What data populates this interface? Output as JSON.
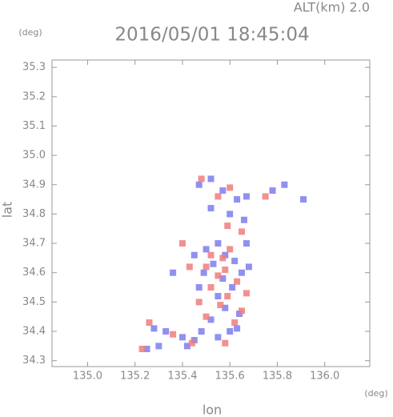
{
  "chart_data": {
    "type": "scatter",
    "title": "2016/05/01 18:45:04",
    "subtitle": "ALT(km) 2.0",
    "y_unit": "(deg)",
    "x_unit": "(deg)",
    "x_label": "lon",
    "y_label": "lat",
    "xlim": [
      134.85,
      136.19
    ],
    "ylim": [
      34.28,
      35.325
    ],
    "xticks": [
      {
        "value": 135.0,
        "label": "135.0"
      },
      135.2,
      135.4,
      135.6,
      135.8,
      {
        "value": 136.0,
        "label": "136.0"
      }
    ],
    "yticks": [
      34.3,
      34.4,
      34.5,
      34.6,
      34.7,
      34.8,
      34.9,
      {
        "value": 35.0,
        "label": "35.0"
      },
      35.1,
      35.2,
      35.3
    ],
    "series": [
      {
        "color": "#7c7cf0",
        "x": [
          135.52,
          135.47,
          135.57,
          135.63,
          135.67,
          135.78,
          135.83,
          135.91,
          135.6,
          135.66,
          135.52,
          135.55,
          135.5,
          135.58,
          135.62,
          135.53,
          135.65,
          135.57,
          135.49,
          135.61,
          135.55,
          135.58,
          135.64,
          135.52,
          135.6,
          135.55,
          135.63,
          135.48,
          135.45,
          135.4,
          135.33,
          135.28,
          135.3,
          135.25,
          135.42,
          135.68,
          135.67,
          135.45,
          135.36,
          135.47
        ],
        "values": [
          34.92,
          34.9,
          34.88,
          34.85,
          34.86,
          34.88,
          34.9,
          34.85,
          34.8,
          34.78,
          34.82,
          34.7,
          34.68,
          34.66,
          34.64,
          34.63,
          34.6,
          34.58,
          34.6,
          34.55,
          34.52,
          34.48,
          34.46,
          34.44,
          34.4,
          34.38,
          34.41,
          34.4,
          34.37,
          34.38,
          34.4,
          34.41,
          34.35,
          34.34,
          34.35,
          34.62,
          34.7,
          34.66,
          34.6,
          34.55
        ]
      },
      {
        "color": "#f07c7c",
        "x": [
          135.48,
          135.6,
          135.55,
          135.75,
          135.59,
          135.65,
          135.4,
          135.52,
          135.57,
          135.6,
          135.5,
          135.58,
          135.55,
          135.63,
          135.52,
          135.59,
          135.56,
          135.65,
          135.62,
          135.5,
          135.58,
          135.44,
          135.36,
          135.26,
          135.23,
          135.47,
          135.43,
          135.67
        ],
        "values": [
          34.92,
          34.89,
          34.86,
          34.86,
          34.76,
          34.74,
          34.7,
          34.66,
          34.65,
          34.68,
          34.62,
          34.61,
          34.59,
          34.57,
          34.55,
          34.52,
          34.49,
          34.47,
          34.43,
          34.45,
          34.36,
          34.36,
          34.39,
          34.43,
          34.34,
          34.5,
          34.62,
          34.53
        ]
      }
    ]
  }
}
